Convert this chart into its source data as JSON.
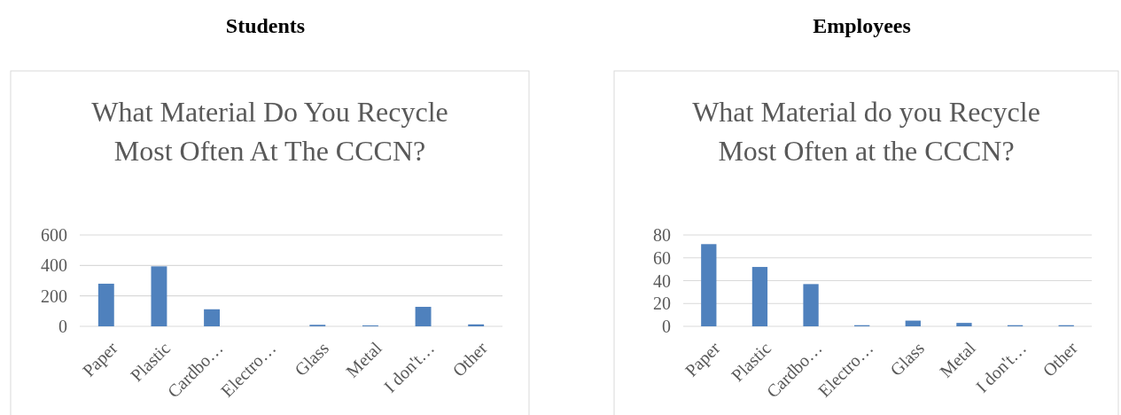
{
  "chart_data": [
    {
      "type": "bar",
      "title": "Students",
      "subtitle": "What Material Do You Recycle Most Often At The CCCN?",
      "categories": [
        "Paper",
        "Plastic",
        "Cardbo…",
        "Electro…",
        "Glass",
        "Metal",
        "I don't…",
        "Other"
      ],
      "values": [
        280,
        394,
        112,
        null,
        10,
        6,
        128,
        13
      ],
      "color": "#4f81bd",
      "ylim": [
        0,
        600
      ],
      "yticks": [
        0,
        200,
        400,
        600
      ],
      "grid": "y"
    },
    {
      "type": "bar",
      "title": "Employees",
      "subtitle": "What Material do you Recycle Most Often at the CCCN?",
      "categories": [
        "Paper",
        "Plastic",
        "Cardbo…",
        "Electro…",
        "Glass",
        "Metal",
        "I don't…",
        "Other"
      ],
      "values": [
        72,
        52,
        37,
        1,
        5,
        3,
        1,
        1
      ],
      "color": "#4f81bd",
      "ylim": [
        0,
        80
      ],
      "yticks": [
        0,
        20,
        40,
        60,
        80
      ],
      "grid": "y"
    }
  ]
}
